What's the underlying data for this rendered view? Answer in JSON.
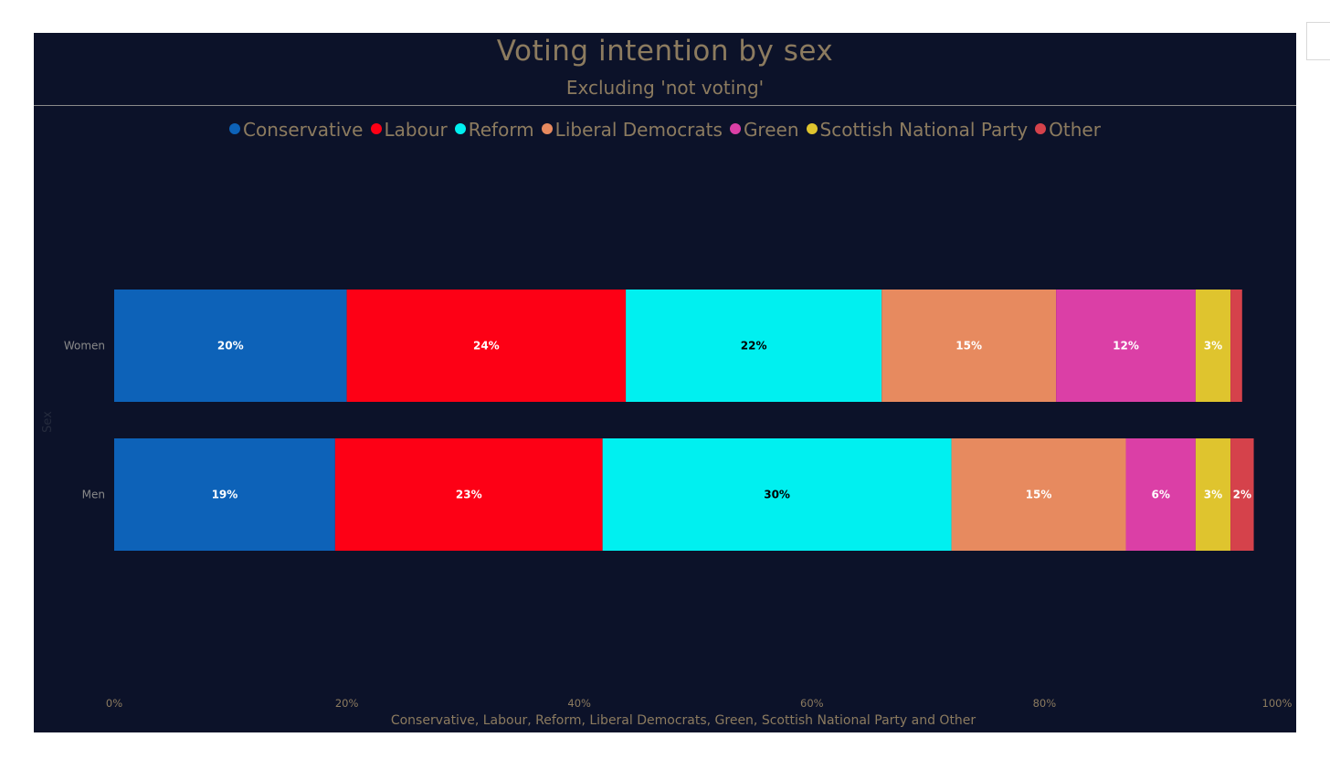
{
  "chart_data": {
    "type": "bar",
    "orientation": "horizontal-stacked",
    "title": "Voting intention by sex",
    "subtitle": "Excluding 'not voting'",
    "xlabel": "Conservative, Labour, Reform, Liberal Democrats, Green, Scottish National Party and Other",
    "ylabel": "Sex",
    "xlim": [
      0,
      100
    ],
    "x_ticks": [
      "0%",
      "20%",
      "40%",
      "60%",
      "80%",
      "100%"
    ],
    "legend_position": "top-center",
    "categories": [
      "Women",
      "Men"
    ],
    "series": [
      {
        "name": "Conservative",
        "color": "#0d62b8",
        "label_color": "#ffffff",
        "values": [
          20,
          19
        ],
        "labels": [
          "20%",
          "19%"
        ]
      },
      {
        "name": "Labour",
        "color": "#fd0015",
        "label_color": "#ffffff",
        "values": [
          24,
          23
        ],
        "labels": [
          "24%",
          "23%"
        ]
      },
      {
        "name": "Reform",
        "color": "#00f0f0",
        "label_color": "#000000",
        "values": [
          22,
          30
        ],
        "labels": [
          "22%",
          "30%"
        ]
      },
      {
        "name": "Liberal Democrats",
        "color": "#e78a5f",
        "label_color": "#ffffff",
        "values": [
          15,
          15
        ],
        "labels": [
          "15%",
          "15%"
        ]
      },
      {
        "name": "Green",
        "color": "#db3fa6",
        "label_color": "#ffffff",
        "values": [
          12,
          6
        ],
        "labels": [
          "12%",
          "6%"
        ]
      },
      {
        "name": "Scottish National Party",
        "color": "#dfc42e",
        "label_color": "#ffffff",
        "values": [
          3,
          3
        ],
        "labels": [
          "3%",
          "3%"
        ]
      },
      {
        "name": "Other",
        "color": "#d5424b",
        "label_color": "#ffffff",
        "values": [
          1,
          2
        ],
        "labels": [
          "",
          "2%"
        ]
      }
    ]
  }
}
